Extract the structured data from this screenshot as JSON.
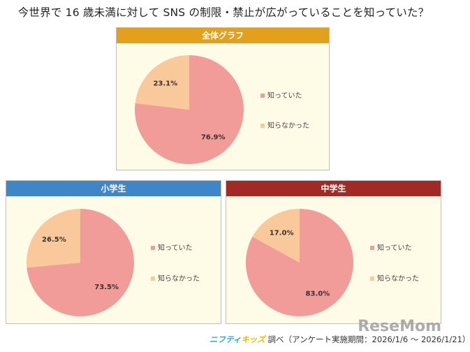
{
  "title": "今世界で 16 歳未満に対して SNS の制限・禁止が広がっていることを知っていた？",
  "colors": {
    "knew": "#f19c98",
    "didnt": "#f9c99b",
    "header_overall": "#e3a01c",
    "header_elem": "#3f86c8",
    "header_middle": "#a12a25"
  },
  "legend_labels": [
    "知っていた",
    "知らなかった"
  ],
  "chart_data": [
    {
      "type": "pie",
      "title": "全体グラフ",
      "categories": [
        "知っていた",
        "知らなかった"
      ],
      "values": [
        76.9,
        23.1
      ],
      "value_labels": [
        "76.9%",
        "23.1%"
      ],
      "legend_placement": "right"
    },
    {
      "type": "pie",
      "title": "小学生",
      "categories": [
        "知っていた",
        "知らなかった"
      ],
      "values": [
        73.5,
        26.5
      ],
      "value_labels": [
        "73.5%",
        "26.5%"
      ],
      "legend_placement": "right"
    },
    {
      "type": "pie",
      "title": "中学生",
      "categories": [
        "知っていた",
        "知らなかった"
      ],
      "values": [
        83.0,
        17.0
      ],
      "value_labels": [
        "83.0%",
        "17.0%"
      ],
      "legend_placement": "right"
    }
  ],
  "footer": {
    "brand_a": "ニフティ",
    "brand_b": "キッズ",
    "text": " 調べ（アンケート実施期間：2026/1/6 ～ 2026/1/21）"
  },
  "watermark": "ReseMom"
}
